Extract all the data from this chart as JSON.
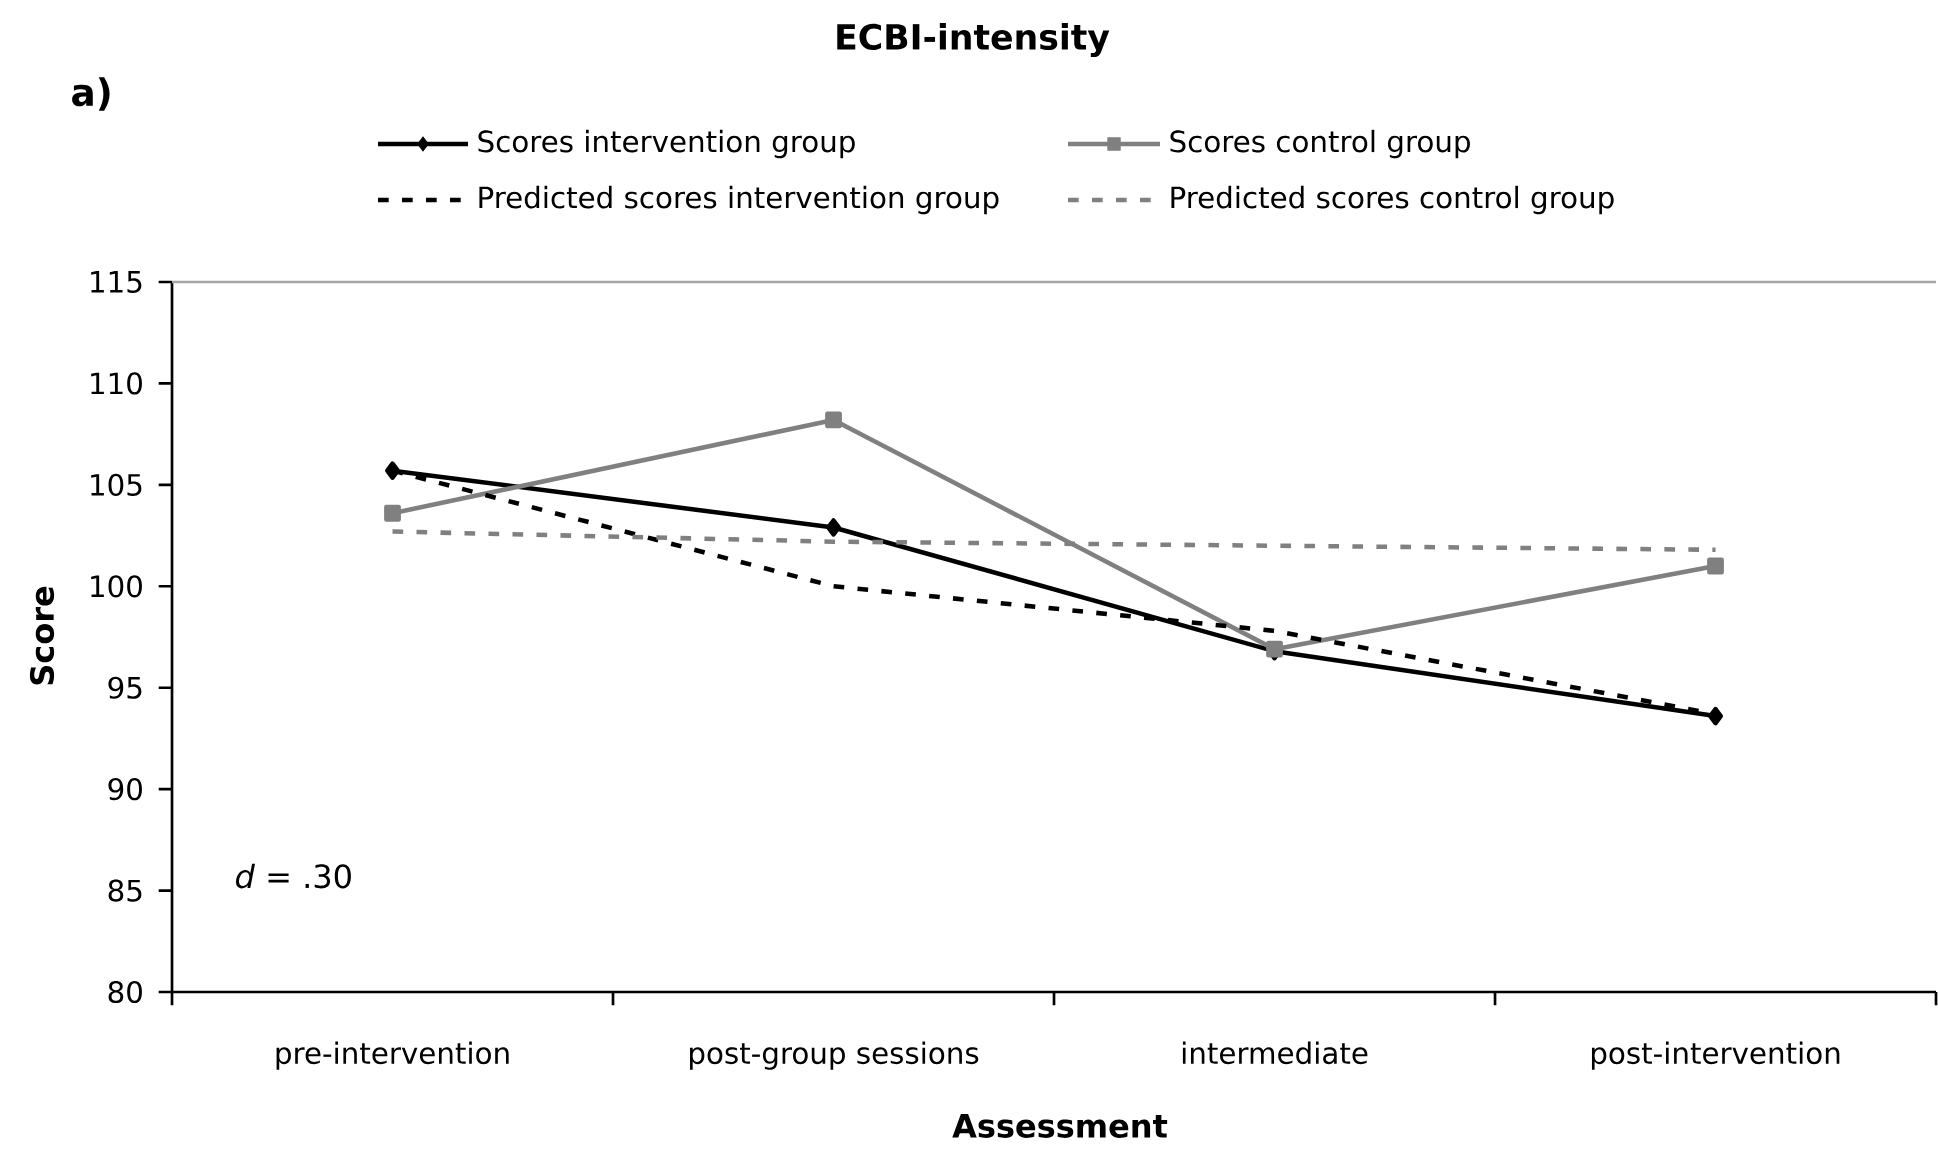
{
  "chart_data": {
    "type": "line",
    "title": "ECBI-intensity",
    "xlabel": "Assessment",
    "ylabel": "Score",
    "categories": [
      "pre-intervention",
      "post-group sessions",
      "intermediate",
      "post-intervention"
    ],
    "series": [
      {
        "name": "Scores intervention group",
        "color": "#000000",
        "values": [
          105.7,
          102.9,
          96.8,
          93.6
        ],
        "marker": "diamond",
        "line_style": "solid"
      },
      {
        "name": "Scores control group",
        "color": "#808080",
        "values": [
          103.6,
          108.2,
          96.9,
          101.0
        ],
        "marker": "square",
        "line_style": "solid"
      },
      {
        "name": "Predicted scores intervention group",
        "color": "#000000",
        "values": [
          105.7,
          100.0,
          97.8,
          93.7
        ],
        "marker": "none",
        "line_style": "dashed"
      },
      {
        "name": "Predicted scores control group",
        "color": "#808080",
        "values": [
          102.7,
          102.2,
          102.0,
          101.8
        ],
        "marker": "none",
        "line_style": "dashed"
      }
    ],
    "ylim": [
      80,
      115
    ],
    "yticks": [
      80,
      85,
      90,
      95,
      100,
      105,
      110,
      115
    ],
    "grid": false,
    "legend": "top",
    "annotations": [
      "a)",
      "*d* = .30"
    ]
  }
}
